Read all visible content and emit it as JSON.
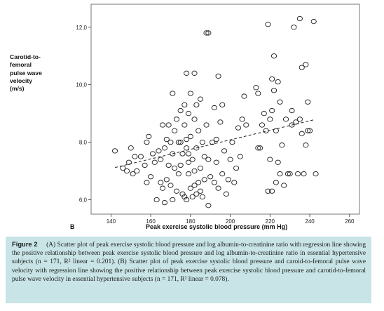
{
  "chart_data": {
    "type": "scatter",
    "ylabel_lines": [
      "Carotid-to-",
      "femoral",
      "pulse wave",
      "velocity",
      "(m/s)"
    ],
    "xlabel": "Peak exercise systolic blood pressure (mm Hg)",
    "panel_label": "B",
    "xlim": [
      130,
      265
    ],
    "ylim": [
      5.5,
      12.8
    ],
    "x_ticks": [
      140,
      160,
      180,
      200,
      220,
      240,
      260
    ],
    "x_tick_labels": [
      "140",
      "160",
      "180",
      "200",
      "220",
      "240",
      "260"
    ],
    "y_ticks": [
      6,
      8,
      10,
      12
    ],
    "y_tick_labels": [
      "6,0",
      "8,0",
      "10,0",
      "12,0"
    ],
    "regression": {
      "x": [
        142,
        242
      ],
      "y": [
        7.12,
        8.78
      ]
    },
    "points": [
      [
        142,
        7.7
      ],
      [
        146,
        7.1
      ],
      [
        148,
        7.0
      ],
      [
        149,
        7.3
      ],
      [
        150,
        7.8
      ],
      [
        151,
        6.9
      ],
      [
        152,
        7.5
      ],
      [
        153,
        7.0
      ],
      [
        155,
        7.5
      ],
      [
        157,
        7.2
      ],
      [
        158,
        8.0
      ],
      [
        158,
        6.6
      ],
      [
        159,
        8.2
      ],
      [
        160,
        6.8
      ],
      [
        161,
        7.6
      ],
      [
        162,
        7.3
      ],
      [
        163,
        6.0
      ],
      [
        164,
        7.7
      ],
      [
        165,
        7.4
      ],
      [
        165,
        6.6
      ],
      [
        166,
        8.6
      ],
      [
        166,
        6.4
      ],
      [
        167,
        5.9
      ],
      [
        167,
        7.8
      ],
      [
        168,
        8.1
      ],
      [
        168,
        6.7
      ],
      [
        169,
        7.2
      ],
      [
        169,
        8.6
      ],
      [
        170,
        6.5
      ],
      [
        170,
        8.0
      ],
      [
        171,
        9.7
      ],
      [
        171,
        6.0
      ],
      [
        171,
        7.6
      ],
      [
        172,
        7.1
      ],
      [
        172,
        8.4
      ],
      [
        173,
        6.3
      ],
      [
        173,
        8.8
      ],
      [
        174,
        8.0
      ],
      [
        174,
        6.9
      ],
      [
        175,
        8.0
      ],
      [
        175,
        7.2
      ],
      [
        175,
        9.1
      ],
      [
        176,
        7.6
      ],
      [
        176,
        6.2
      ],
      [
        177,
        8.6
      ],
      [
        177,
        6.1
      ],
      [
        177,
        9.3
      ],
      [
        178,
        10.4
      ],
      [
        178,
        7.8
      ],
      [
        178,
        6.0
      ],
      [
        178,
        8.1
      ],
      [
        179,
        6.9
      ],
      [
        179,
        7.3
      ],
      [
        179,
        9.0
      ],
      [
        179,
        7.6
      ],
      [
        180,
        8.2
      ],
      [
        180,
        6.4
      ],
      [
        180,
        9.7
      ],
      [
        181,
        7.4
      ],
      [
        181,
        6.1
      ],
      [
        182,
        8.8
      ],
      [
        182,
        10.4
      ],
      [
        182,
        7.0
      ],
      [
        182,
        6.5
      ],
      [
        183,
        9.3
      ],
      [
        183,
        6.2
      ],
      [
        183,
        7.8
      ],
      [
        184,
        8.4
      ],
      [
        184,
        6.6
      ],
      [
        185,
        9.5
      ],
      [
        185,
        7.1
      ],
      [
        185,
        6.3
      ],
      [
        186,
        8.0
      ],
      [
        186,
        6.1
      ],
      [
        187,
        6.7
      ],
      [
        187,
        7.5
      ],
      [
        188,
        8.6
      ],
      [
        188,
        11.8
      ],
      [
        189,
        11.8
      ],
      [
        189,
        5.8
      ],
      [
        189,
        7.4
      ],
      [
        190,
        6.8
      ],
      [
        191,
        8.0
      ],
      [
        192,
        9.2
      ],
      [
        192,
        6.6
      ],
      [
        193,
        7.3
      ],
      [
        193,
        8.1
      ],
      [
        194,
        10.3
      ],
      [
        194,
        6.4
      ],
      [
        195,
        8.7
      ],
      [
        196,
        9.3
      ],
      [
        196,
        6.9
      ],
      [
        197,
        7.7
      ],
      [
        198,
        6.2
      ],
      [
        199,
        6.7
      ],
      [
        200,
        7.4
      ],
      [
        201,
        8.0
      ],
      [
        202,
        6.6
      ],
      [
        203,
        7.1
      ],
      [
        204,
        8.5
      ],
      [
        205,
        7.5
      ],
      [
        206,
        8.8
      ],
      [
        207,
        9.6
      ],
      [
        208,
        8.6
      ],
      [
        213,
        9.9
      ],
      [
        214,
        7.8
      ],
      [
        214,
        9.7
      ],
      [
        215,
        7.8
      ],
      [
        216,
        8.6
      ],
      [
        217,
        9.0
      ],
      [
        218,
        8.4
      ],
      [
        219,
        6.3
      ],
      [
        219,
        12.1
      ],
      [
        220,
        7.4
      ],
      [
        220,
        8.8
      ],
      [
        221,
        10.2
      ],
      [
        221,
        6.3
      ],
      [
        221,
        9.1
      ],
      [
        222,
        9.8
      ],
      [
        222,
        11.0
      ],
      [
        223,
        8.4
      ],
      [
        223,
        6.6
      ],
      [
        224,
        10.1
      ],
      [
        224,
        7.3
      ],
      [
        225,
        9.4
      ],
      [
        225,
        6.9
      ],
      [
        226,
        7.9
      ],
      [
        227,
        6.5
      ],
      [
        228,
        8.8
      ],
      [
        229,
        6.9
      ],
      [
        230,
        6.9
      ],
      [
        231,
        8.6
      ],
      [
        231,
        9.1
      ],
      [
        232,
        12.0
      ],
      [
        233,
        8.7
      ],
      [
        234,
        6.9
      ],
      [
        235,
        12.3
      ],
      [
        235,
        8.8
      ],
      [
        236,
        10.6
      ],
      [
        236,
        8.3
      ],
      [
        237,
        6.9
      ],
      [
        238,
        7.9
      ],
      [
        238,
        10.7
      ],
      [
        239,
        9.4
      ],
      [
        239,
        8.4
      ],
      [
        240,
        8.4
      ],
      [
        242,
        12.2
      ],
      [
        243,
        6.9
      ]
    ]
  },
  "caption": {
    "figure_label": "Figure 2",
    "panel_a_label": "(A)",
    "panel_a_text": "Scatter plot of peak exercise systolic blood pressure and log albumin-to-creatinine ratio with regression line showing the positive relationship between peak exercise systolic blood pressure and log albumin-to-creatinine ratio in essential hypertensive subjects (n = 171, R² linear = 0.201).",
    "panel_b_label": "(B)",
    "panel_b_text": "Scatter plot of peak exercise systolic blood pressure and caroid-to-femoral pulse wave velocity with regression line showing the positive relationship between peak exercise systolic blood pressure and carotid-to-femoral pulse wave velocity in essential hypertensive subjects (n = 171, R² linear = 0.078)."
  }
}
